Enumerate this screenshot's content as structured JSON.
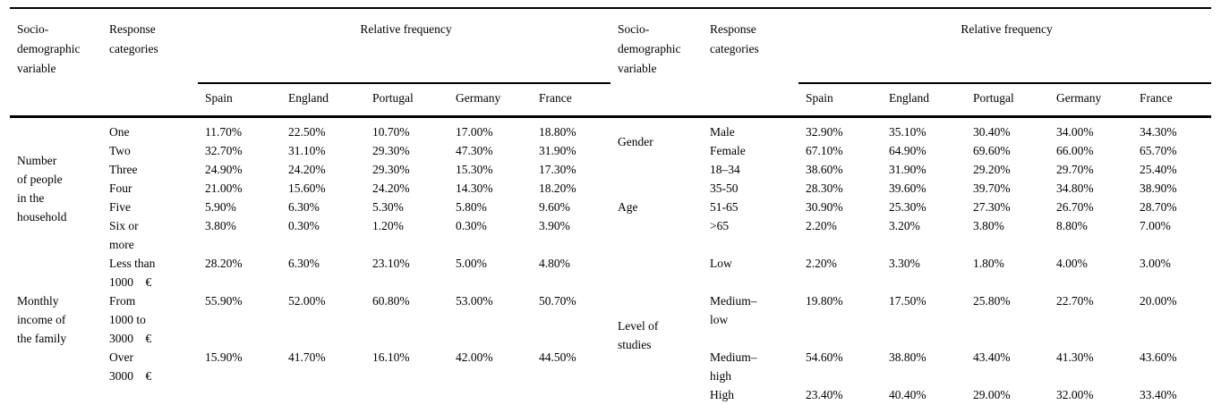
{
  "table": {
    "header": {
      "variable_label": "Socio-\ndemographic\nvariable",
      "categories_label": "Response\ncategories",
      "frequency_label": "Relative frequency",
      "countries": [
        "Spain",
        "England",
        "Portugal",
        "Germany",
        "France"
      ]
    },
    "left": {
      "groups": [
        {
          "variable": "Number\nof people\nin the\nhousehold",
          "rows": [
            {
              "category": "One",
              "values": [
                "11.70%",
                "22.50%",
                "10.70%",
                "17.00%",
                "18.80%"
              ]
            },
            {
              "category": "Two",
              "values": [
                "32.70%",
                "31.10%",
                "29.30%",
                "47.30%",
                "31.90%"
              ]
            },
            {
              "category": "Three",
              "values": [
                "24.90%",
                "24.20%",
                "29.30%",
                "15.30%",
                "17.30%"
              ]
            },
            {
              "category": "Four",
              "values": [
                "21.00%",
                "15.60%",
                "24.20%",
                "14.30%",
                "18.20%"
              ]
            },
            {
              "category": "Five",
              "values": [
                "5.90%",
                "6.30%",
                "5.30%",
                "5.80%",
                "9.60%"
              ]
            },
            {
              "category": "Six or\nmore",
              "values": [
                "3.80%",
                "0.30%",
                "1.20%",
                "0.30%",
                "3.90%"
              ]
            }
          ]
        },
        {
          "variable": "Monthly\nincome of\nthe family",
          "rows": [
            {
              "category": "Less than\n1000    €",
              "values": [
                "28.20%",
                "6.30%",
                "23.10%",
                "5.00%",
                "4.80%"
              ]
            },
            {
              "category": "From\n1000 to\n3000    €",
              "values": [
                "55.90%",
                "52.00%",
                "60.80%",
                "53.00%",
                "50.70%"
              ]
            },
            {
              "category": "Over\n3000    €",
              "values": [
                "15.90%",
                "41.70%",
                "16.10%",
                "42.00%",
                "44.50%"
              ]
            }
          ]
        },
        {
          "variable": "",
          "rows": [
            {
              "category": "",
              "values": [
                "",
                "",
                "",
                "",
                ""
              ]
            }
          ]
        }
      ]
    },
    "right": {
      "groups": [
        {
          "variable": "Gender",
          "rows": [
            {
              "category": "Male",
              "values": [
                "32.90%",
                "35.10%",
                "30.40%",
                "34.00%",
                "34.30%"
              ]
            },
            {
              "category": "Female",
              "values": [
                "67.10%",
                "64.90%",
                "69.60%",
                "66.00%",
                "65.70%"
              ]
            }
          ]
        },
        {
          "variable": "Age",
          "rows": [
            {
              "category": "18–34",
              "values": [
                "38.60%",
                "31.90%",
                "29.20%",
                "29.70%",
                "25.40%"
              ]
            },
            {
              "category": "35-50",
              "values": [
                "28.30%",
                "39.60%",
                "39.70%",
                "34.80%",
                "38.90%"
              ]
            },
            {
              "category": "51-65",
              "values": [
                "30.90%",
                "25.30%",
                "27.30%",
                "26.70%",
                "28.70%"
              ]
            },
            {
              "category": ">65",
              "values": [
                "2.20%",
                "3.20%",
                "3.80%",
                "8.80%",
                "7.00%"
              ]
            }
          ]
        },
        {
          "variable": "Level of\nstudies",
          "rows": [
            {
              "category": "Low",
              "values": [
                "2.20%",
                "3.30%",
                "1.80%",
                "4.00%",
                "3.00%"
              ]
            },
            {
              "category": "Medium–\nlow",
              "values": [
                "19.80%",
                "17.50%",
                "25.80%",
                "22.70%",
                "20.00%"
              ]
            },
            {
              "category": "Medium–\nhigh",
              "values": [
                "54.60%",
                "38.80%",
                "43.40%",
                "41.30%",
                "43.60%"
              ]
            },
            {
              "category": "High",
              "values": [
                "23.40%",
                "40.40%",
                "29.00%",
                "32.00%",
                "33.40%"
              ]
            }
          ]
        }
      ]
    }
  }
}
